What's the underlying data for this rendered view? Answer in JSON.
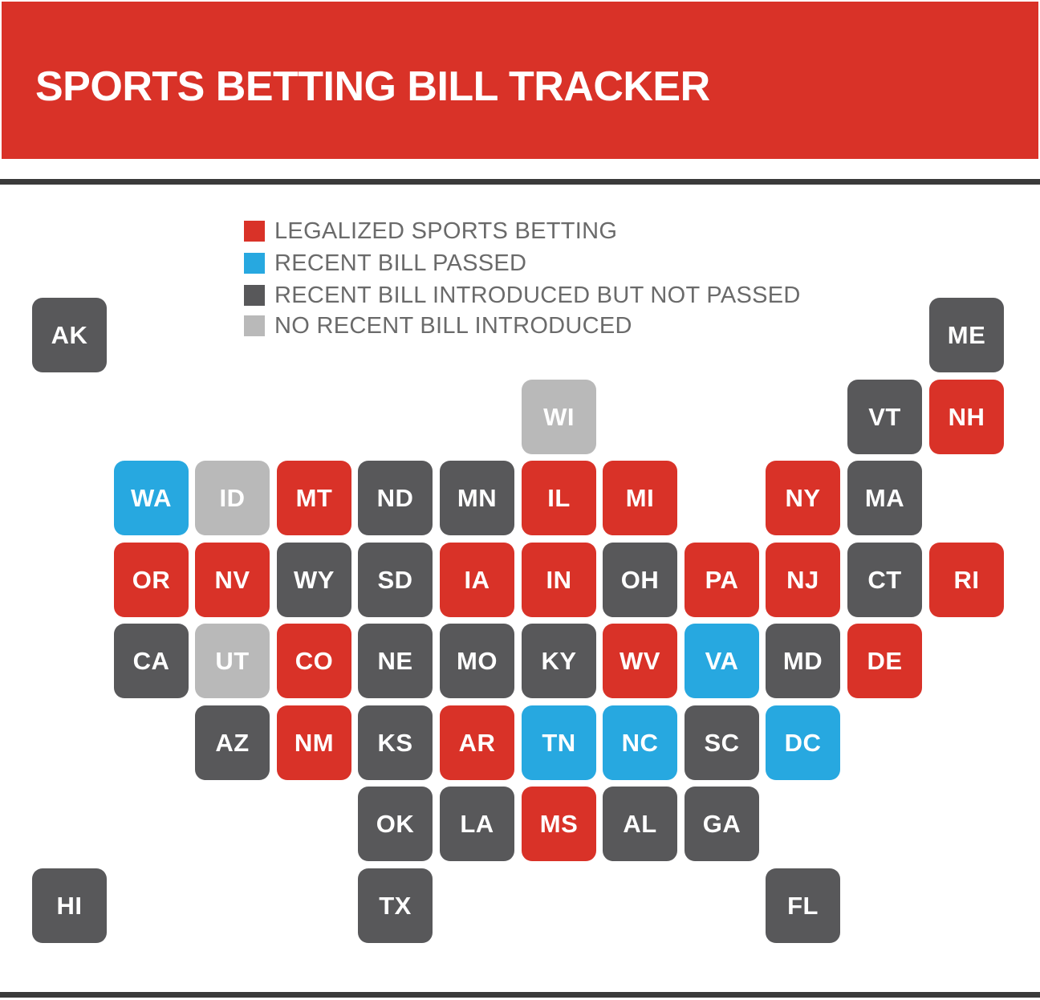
{
  "title": "SPORTS BETTING BILL TRACKER",
  "colors": {
    "legalized": "#d93228",
    "passed": "#27a8e0",
    "introduced": "#58585a",
    "none": "#b9b9b9",
    "header": "#d93228",
    "rule": "#3a3a3a"
  },
  "legend": [
    {
      "status": "legalized",
      "label": "LEGALIZED SPORTS BETTING"
    },
    {
      "status": "passed",
      "label": "RECENT BILL PASSED"
    },
    {
      "status": "introduced",
      "label": "RECENT BILL INTRODUCED BUT NOT PASSED"
    },
    {
      "status": "none",
      "label": "NO RECENT BILL INTRODUCED"
    }
  ],
  "states": [
    {
      "code": "AK",
      "status": "introduced",
      "row": 0,
      "col": 0
    },
    {
      "code": "ME",
      "status": "introduced",
      "row": 0,
      "col": 11
    },
    {
      "code": "WI",
      "status": "none",
      "row": 1,
      "col": 6
    },
    {
      "code": "VT",
      "status": "introduced",
      "row": 1,
      "col": 10
    },
    {
      "code": "NH",
      "status": "legalized",
      "row": 1,
      "col": 11
    },
    {
      "code": "WA",
      "status": "passed",
      "row": 2,
      "col": 1
    },
    {
      "code": "ID",
      "status": "none",
      "row": 2,
      "col": 2
    },
    {
      "code": "MT",
      "status": "legalized",
      "row": 2,
      "col": 3
    },
    {
      "code": "ND",
      "status": "introduced",
      "row": 2,
      "col": 4
    },
    {
      "code": "MN",
      "status": "introduced",
      "row": 2,
      "col": 5
    },
    {
      "code": "IL",
      "status": "legalized",
      "row": 2,
      "col": 6
    },
    {
      "code": "MI",
      "status": "legalized",
      "row": 2,
      "col": 7
    },
    {
      "code": "NY",
      "status": "legalized",
      "row": 2,
      "col": 9
    },
    {
      "code": "MA",
      "status": "introduced",
      "row": 2,
      "col": 10
    },
    {
      "code": "OR",
      "status": "legalized",
      "row": 3,
      "col": 1
    },
    {
      "code": "NV",
      "status": "legalized",
      "row": 3,
      "col": 2
    },
    {
      "code": "WY",
      "status": "introduced",
      "row": 3,
      "col": 3
    },
    {
      "code": "SD",
      "status": "introduced",
      "row": 3,
      "col": 4
    },
    {
      "code": "IA",
      "status": "legalized",
      "row": 3,
      "col": 5
    },
    {
      "code": "IN",
      "status": "legalized",
      "row": 3,
      "col": 6
    },
    {
      "code": "OH",
      "status": "introduced",
      "row": 3,
      "col": 7
    },
    {
      "code": "PA",
      "status": "legalized",
      "row": 3,
      "col": 8
    },
    {
      "code": "NJ",
      "status": "legalized",
      "row": 3,
      "col": 9
    },
    {
      "code": "CT",
      "status": "introduced",
      "row": 3,
      "col": 10
    },
    {
      "code": "RI",
      "status": "legalized",
      "row": 3,
      "col": 11
    },
    {
      "code": "CA",
      "status": "introduced",
      "row": 4,
      "col": 1
    },
    {
      "code": "UT",
      "status": "none",
      "row": 4,
      "col": 2
    },
    {
      "code": "CO",
      "status": "legalized",
      "row": 4,
      "col": 3
    },
    {
      "code": "NE",
      "status": "introduced",
      "row": 4,
      "col": 4
    },
    {
      "code": "MO",
      "status": "introduced",
      "row": 4,
      "col": 5
    },
    {
      "code": "KY",
      "status": "introduced",
      "row": 4,
      "col": 6
    },
    {
      "code": "WV",
      "status": "legalized",
      "row": 4,
      "col": 7
    },
    {
      "code": "VA",
      "status": "passed",
      "row": 4,
      "col": 8
    },
    {
      "code": "MD",
      "status": "introduced",
      "row": 4,
      "col": 9
    },
    {
      "code": "DE",
      "status": "legalized",
      "row": 4,
      "col": 10
    },
    {
      "code": "AZ",
      "status": "introduced",
      "row": 5,
      "col": 2
    },
    {
      "code": "NM",
      "status": "legalized",
      "row": 5,
      "col": 3
    },
    {
      "code": "KS",
      "status": "introduced",
      "row": 5,
      "col": 4
    },
    {
      "code": "AR",
      "status": "legalized",
      "row": 5,
      "col": 5
    },
    {
      "code": "TN",
      "status": "passed",
      "row": 5,
      "col": 6
    },
    {
      "code": "NC",
      "status": "passed",
      "row": 5,
      "col": 7
    },
    {
      "code": "SC",
      "status": "introduced",
      "row": 5,
      "col": 8
    },
    {
      "code": "DC",
      "status": "passed",
      "row": 5,
      "col": 9
    },
    {
      "code": "OK",
      "status": "introduced",
      "row": 6,
      "col": 4
    },
    {
      "code": "LA",
      "status": "introduced",
      "row": 6,
      "col": 5
    },
    {
      "code": "MS",
      "status": "legalized",
      "row": 6,
      "col": 6
    },
    {
      "code": "AL",
      "status": "introduced",
      "row": 6,
      "col": 7
    },
    {
      "code": "GA",
      "status": "introduced",
      "row": 6,
      "col": 8
    },
    {
      "code": "HI",
      "status": "introduced",
      "row": 7,
      "col": 0
    },
    {
      "code": "TX",
      "status": "introduced",
      "row": 7,
      "col": 4
    },
    {
      "code": "FL",
      "status": "introduced",
      "row": 7,
      "col": 9
    }
  ]
}
